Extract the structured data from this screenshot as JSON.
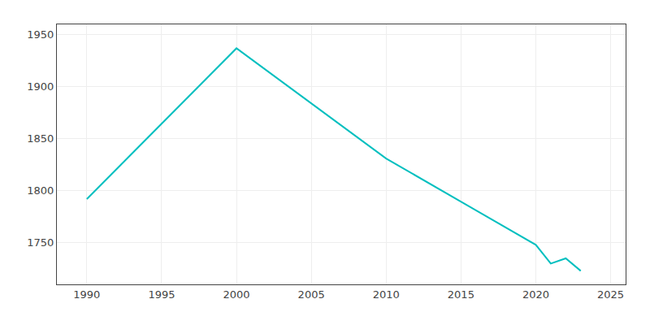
{
  "chart_data": {
    "type": "line",
    "x": [
      1990,
      2000,
      2010,
      2020,
      2021,
      2022,
      2023
    ],
    "values": [
      1792,
      1937,
      1831,
      1748,
      1730,
      1735,
      1723
    ],
    "color": "#00BFBF",
    "xlim": [
      1988,
      2026
    ],
    "ylim": [
      1710,
      1960
    ],
    "xticks": [
      1990,
      1995,
      2000,
      2005,
      2010,
      2015,
      2020,
      2025
    ],
    "yticks": [
      1750,
      1800,
      1850,
      1900,
      1950
    ],
    "grid": true
  }
}
